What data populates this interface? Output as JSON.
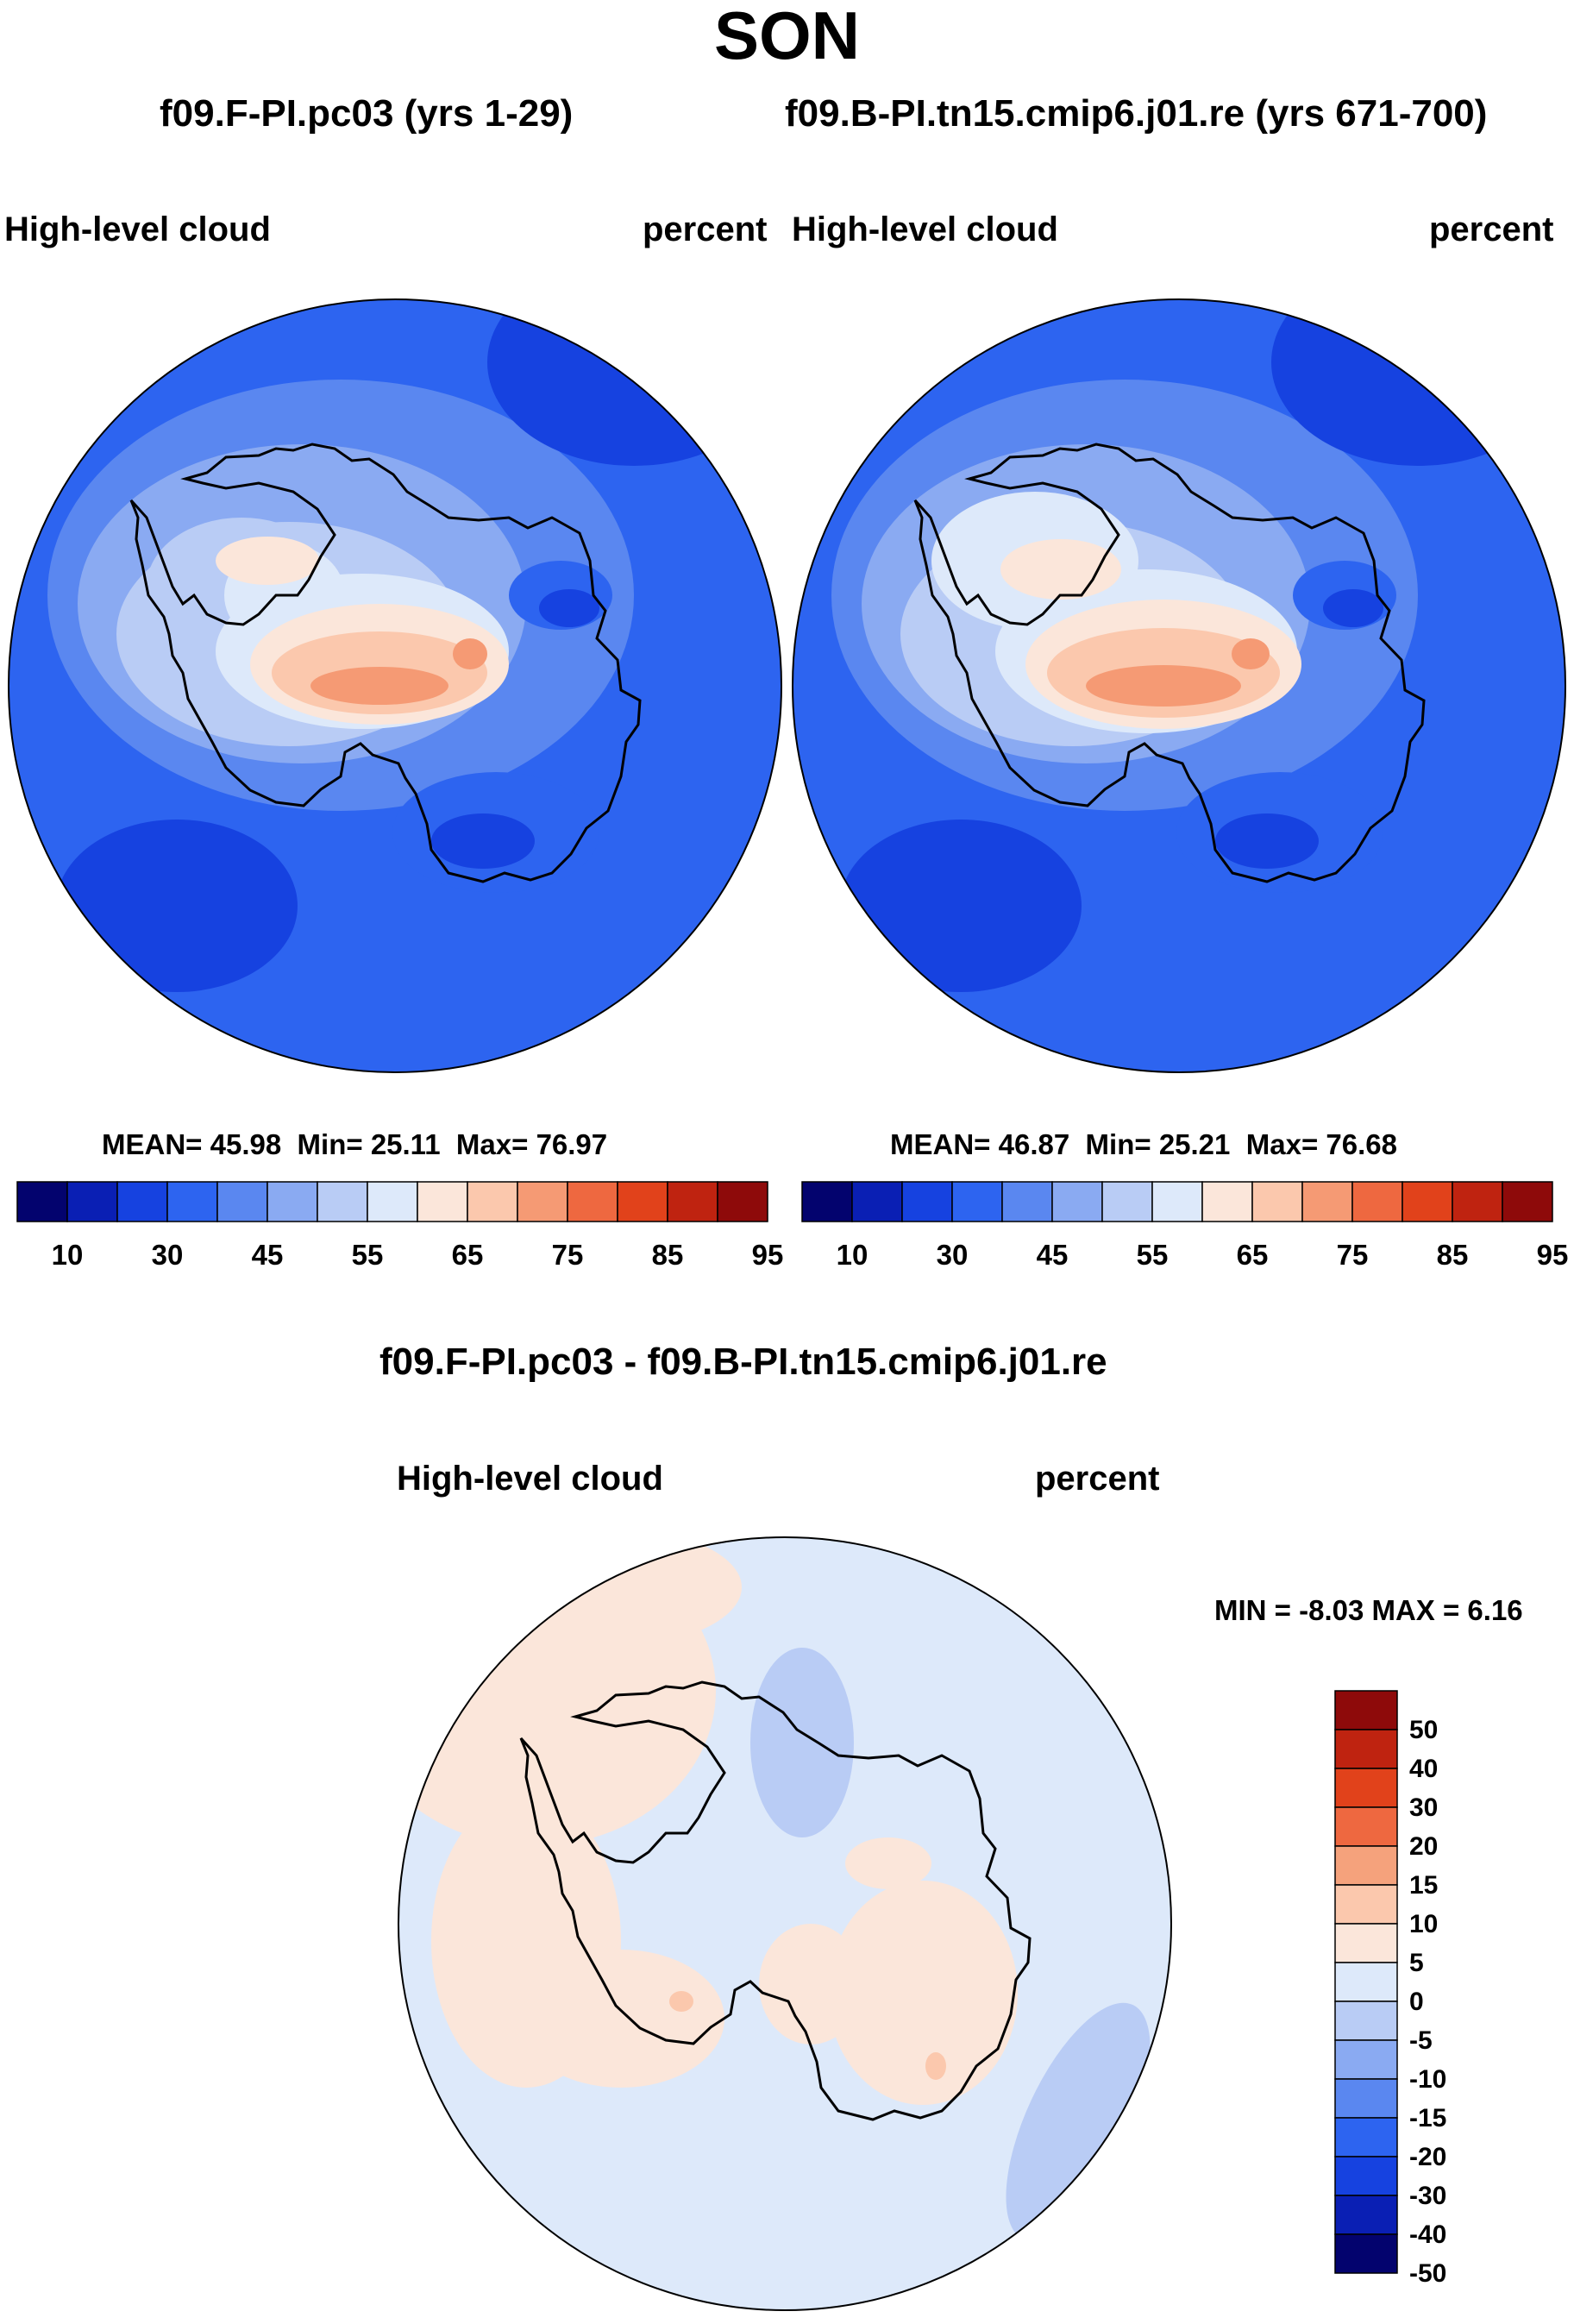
{
  "season": "SON",
  "panels": [
    {
      "case_title": "f09.F-PI.pc03 (yrs 1-29)",
      "variable": "High-level cloud",
      "units": "percent",
      "stats": {
        "mean_label": "MEAN=",
        "mean": "45.98",
        "min_label": "Min=",
        "min": "25.11",
        "max_label": "Max=",
        "max": "76.97"
      }
    },
    {
      "case_title": "f09.B-PI.tn15.cmip6.j01.re (yrs 671-700)",
      "variable": "High-level cloud",
      "units": "percent",
      "stats": {
        "mean_label": "MEAN=",
        "mean": "46.87",
        "min_label": "Min=",
        "min": "25.21",
        "max_label": "Max=",
        "max": "76.68"
      }
    }
  ],
  "diff_panel": {
    "title": "f09.F-PI.pc03 - f09.B-PI.tn15.cmip6.j01.re",
    "variable": "High-level cloud",
    "units": "percent",
    "stats_text": "MIN =  -8.03 MAX =   6.16"
  },
  "abs_colorbar": {
    "colors": [
      "#03036e",
      "#0a1fb4",
      "#1642e0",
      "#2d64f0",
      "#5a87f0",
      "#8aaaf2",
      "#b9ccf5",
      "#dde9fa",
      "#fbe6da",
      "#fbc8ad",
      "#f59a74",
      "#ee6840",
      "#e1421b",
      "#bf2310",
      "#8e0a0a"
    ],
    "tick_labels": [
      "10",
      "30",
      "45",
      "55",
      "65",
      "75",
      "85",
      "95"
    ]
  },
  "diff_colorbar": {
    "colors": [
      "#8e0a0a",
      "#bf2310",
      "#e1421b",
      "#ee6840",
      "#f5a27c",
      "#fbc8ad",
      "#fbe6da",
      "#dde9fa",
      "#b9ccf5",
      "#8aaaf2",
      "#5a87f0",
      "#2d64f0",
      "#1642e0",
      "#0a1fb4",
      "#03036e"
    ],
    "tick_labels": [
      "50",
      "40",
      "30",
      "20",
      "15",
      "10",
      "5",
      "0",
      "-5",
      "-10",
      "-15",
      "-20",
      "-30",
      "-40",
      "-50"
    ]
  }
}
